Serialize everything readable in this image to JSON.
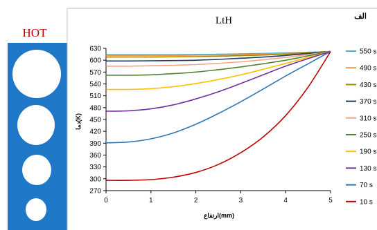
{
  "panel_label": "HOT",
  "corner_label": "الف",
  "colors": {
    "tube": "#1f77c8",
    "hot_text": "#c00000"
  },
  "chart_data": {
    "type": "line",
    "title": "LtH",
    "xlabel": "ارتفاع(mm)",
    "ylabel": "دما(K)",
    "xlim": [
      0,
      5
    ],
    "ylim": [
      270,
      630
    ],
    "xticks": [
      0,
      1,
      2,
      3,
      4,
      5
    ],
    "yticks": [
      270,
      300,
      330,
      360,
      390,
      420,
      450,
      480,
      510,
      540,
      570,
      600,
      630
    ],
    "grid": false,
    "legend_position": "right",
    "series": [
      {
        "name": "550 s",
        "color": "#4bacc6",
        "x": [
          0,
          0.5,
          1,
          1.5,
          2,
          2.5,
          3,
          3.5,
          4,
          4.5,
          5
        ],
        "y": [
          614,
          614,
          614,
          614,
          614.5,
          615,
          616,
          617,
          618.5,
          620,
          622
        ]
      },
      {
        "name": "490 s",
        "color": "#f79646",
        "x": [
          0,
          0.5,
          1,
          1.5,
          2,
          2.5,
          3,
          3.5,
          4,
          4.5,
          5
        ],
        "y": [
          612,
          612,
          612,
          612,
          612.5,
          613,
          614,
          615.5,
          617,
          619,
          622
        ]
      },
      {
        "name": "430 s",
        "color": "#9c8a00",
        "x": [
          0,
          0.5,
          1,
          1.5,
          2,
          2.5,
          3,
          3.5,
          4,
          4.5,
          5
        ],
        "y": [
          608,
          608,
          608,
          608.5,
          609,
          610,
          611.5,
          613,
          615.5,
          618.5,
          622
        ]
      },
      {
        "name": "370 s",
        "color": "#1f3864",
        "x": [
          0,
          0.5,
          1,
          1.5,
          2,
          2.5,
          3,
          3.5,
          4,
          4.5,
          5
        ],
        "y": [
          598,
          598,
          598.5,
          599,
          600,
          602,
          605,
          608,
          612,
          617,
          622
        ]
      },
      {
        "name": "310 s",
        "color": "#f4a582",
        "x": [
          0,
          0.5,
          1,
          1.5,
          2,
          2.5,
          3,
          3.5,
          4,
          4.5,
          5
        ],
        "y": [
          585,
          585,
          586,
          587,
          589,
          592,
          596,
          601,
          607,
          614,
          622
        ]
      },
      {
        "name": "250 s",
        "color": "#548235",
        "x": [
          0,
          0.5,
          1,
          1.5,
          2,
          2.5,
          3,
          3.5,
          4,
          4.5,
          5
        ],
        "y": [
          562,
          562,
          563,
          566,
          570,
          576,
          583,
          591,
          600,
          611,
          622
        ]
      },
      {
        "name": "190 s",
        "color": "#ffc000",
        "x": [
          0,
          0.5,
          1,
          1.5,
          2,
          2.5,
          3,
          3.5,
          4,
          4.5,
          5
        ],
        "y": [
          526,
          526,
          528,
          533,
          541,
          551,
          563,
          577,
          592,
          607,
          622
        ]
      },
      {
        "name": "130 s",
        "color": "#7030a0",
        "x": [
          0,
          0.5,
          1,
          1.5,
          2,
          2.5,
          3,
          3.5,
          4,
          4.5,
          5
        ],
        "y": [
          471,
          472,
          477,
          487,
          502,
          520,
          541,
          563,
          585,
          604,
          622
        ]
      },
      {
        "name": "70 s",
        "color": "#2e75b6",
        "x": [
          0,
          0.5,
          1,
          1.5,
          2,
          2.5,
          3,
          3.5,
          4,
          4.5,
          5
        ],
        "y": [
          391,
          393,
          401,
          416,
          438,
          465,
          495,
          527,
          560,
          591,
          622
        ]
      },
      {
        "name": "10 s",
        "color": "#c00000",
        "x": [
          0,
          0.5,
          1,
          1.5,
          2,
          2.5,
          3,
          3.5,
          4,
          4.5,
          5
        ],
        "y": [
          296,
          296,
          298,
          304,
          316,
          336,
          366,
          406,
          460,
          532,
          622
        ]
      }
    ]
  }
}
